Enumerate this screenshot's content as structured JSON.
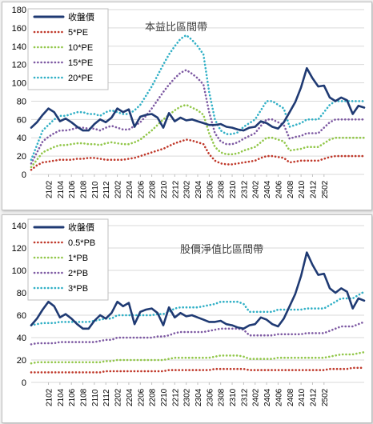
{
  "chart_data": [
    {
      "type": "line",
      "title": "本益比區間帶",
      "legend_position": "top-left",
      "ylim": [
        0,
        180
      ],
      "yticks": [
        0,
        20,
        40,
        60,
        80,
        100,
        120,
        140,
        160,
        180
      ],
      "grid": true,
      "x_tick_labels": [
        "2102",
        "2104",
        "2106",
        "2108",
        "2110",
        "2112",
        "2202",
        "2204",
        "2206",
        "2208",
        "2210",
        "2212",
        "2302",
        "2304",
        "2306",
        "2308",
        "2310",
        "2312",
        "2402",
        "2404",
        "2406",
        "2408",
        "2410",
        "2412",
        "2502"
      ],
      "series": [
        {
          "name": "收盤價",
          "color": "#1f3a73",
          "style": "solid",
          "values": [
            51,
            57,
            65,
            72,
            68,
            58,
            61,
            57,
            52,
            48,
            48,
            55,
            60,
            57,
            62,
            72,
            68,
            71,
            52,
            63,
            65,
            66,
            62,
            51,
            67,
            58,
            62,
            59,
            60,
            58,
            56,
            54,
            54,
            55,
            52,
            51,
            49,
            48,
            51,
            52,
            58,
            56,
            52,
            50,
            57,
            68,
            79,
            95,
            116,
            105,
            96,
            97,
            84,
            80,
            84,
            81,
            66,
            75,
            73
          ]
        },
        {
          "name": "5*PE",
          "color": "#c0392b",
          "style": "dotted",
          "values": [
            5,
            10,
            13,
            14,
            15,
            16,
            16,
            16,
            17,
            17,
            18,
            18,
            17,
            16,
            16,
            16,
            16,
            17,
            18,
            20,
            22,
            24,
            26,
            28,
            31,
            34,
            36,
            38,
            37,
            35,
            33,
            22,
            15,
            12,
            11,
            11,
            12,
            13,
            14,
            15,
            18,
            20,
            20,
            19,
            18,
            13,
            14,
            15,
            15,
            15,
            15,
            17,
            19,
            20,
            20,
            20,
            20,
            20,
            20
          ]
        },
        {
          "name": "10*PE",
          "color": "#92c74a",
          "style": "dotted",
          "values": [
            8,
            16,
            24,
            27,
            30,
            32,
            32,
            33,
            34,
            34,
            33,
            33,
            32,
            34,
            35,
            34,
            33,
            33,
            35,
            38,
            43,
            48,
            54,
            60,
            65,
            70,
            74,
            76,
            73,
            70,
            65,
            45,
            30,
            24,
            22,
            22,
            23,
            26,
            28,
            30,
            35,
            40,
            40,
            38,
            36,
            26,
            27,
            28,
            30,
            30,
            30,
            34,
            38,
            40,
            40,
            40,
            40,
            40,
            40
          ]
        },
        {
          "name": "15*PE",
          "color": "#7e5aa3",
          "style": "dotted",
          "values": [
            12,
            24,
            36,
            41,
            45,
            48,
            48,
            49,
            51,
            51,
            50,
            50,
            48,
            51,
            53,
            51,
            49,
            49,
            53,
            57,
            64,
            72,
            81,
            90,
            98,
            105,
            111,
            114,
            110,
            105,
            98,
            68,
            45,
            36,
            33,
            33,
            35,
            39,
            42,
            45,
            53,
            60,
            60,
            57,
            54,
            39,
            41,
            42,
            45,
            45,
            45,
            51,
            57,
            60,
            60,
            60,
            60,
            60,
            60
          ]
        },
        {
          "name": "20*PE",
          "color": "#31b0c6",
          "style": "dotted",
          "values": [
            16,
            32,
            48,
            54,
            60,
            64,
            64,
            66,
            68,
            68,
            66,
            66,
            64,
            68,
            70,
            68,
            66,
            66,
            70,
            76,
            86,
            96,
            108,
            120,
            131,
            140,
            148,
            152,
            147,
            140,
            131,
            90,
            60,
            48,
            44,
            44,
            46,
            52,
            56,
            60,
            70,
            80,
            80,
            76,
            72,
            52,
            54,
            56,
            60,
            60,
            60,
            68,
            76,
            80,
            80,
            80,
            80,
            80,
            80
          ]
        }
      ]
    },
    {
      "type": "line",
      "title": "股價淨值比區間帶",
      "legend_position": "top-left",
      "ylim": [
        0,
        140
      ],
      "yticks": [
        0,
        20,
        40,
        60,
        80,
        100,
        120,
        140
      ],
      "grid": true,
      "x_tick_labels": [
        "2102",
        "2104",
        "2106",
        "2108",
        "2110",
        "2112",
        "2202",
        "2204",
        "2206",
        "2208",
        "2210",
        "2212",
        "2302",
        "2304",
        "2306",
        "2308",
        "2310",
        "2312",
        "2402",
        "2404",
        "2406",
        "2408",
        "2410",
        "2412",
        "2502"
      ],
      "series": [
        {
          "name": "收盤價",
          "color": "#1f3a73",
          "style": "solid",
          "values": [
            51,
            57,
            65,
            72,
            68,
            58,
            61,
            57,
            52,
            48,
            48,
            55,
            60,
            57,
            62,
            72,
            68,
            71,
            52,
            63,
            65,
            66,
            62,
            51,
            67,
            58,
            62,
            59,
            60,
            58,
            56,
            54,
            54,
            55,
            52,
            51,
            49,
            48,
            51,
            52,
            58,
            56,
            52,
            50,
            57,
            68,
            79,
            95,
            116,
            105,
            96,
            97,
            84,
            80,
            84,
            81,
            66,
            75,
            73
          ]
        },
        {
          "name": "0.5*PB",
          "color": "#c0392b",
          "style": "dotted",
          "values": [
            9,
            9,
            9,
            9,
            9,
            9,
            9,
            9,
            9,
            9,
            9,
            9,
            9,
            10,
            10,
            10,
            10,
            10,
            10,
            10,
            10,
            10,
            10,
            10,
            11,
            11,
            11,
            11,
            11,
            11,
            11,
            11,
            12,
            12,
            12,
            12,
            12,
            12,
            11,
            11,
            11,
            11,
            11,
            11,
            11,
            11,
            11,
            11,
            11,
            11,
            11,
            11,
            12,
            12,
            12,
            12,
            13,
            13,
            13
          ]
        },
        {
          "name": "1*PB",
          "color": "#92c74a",
          "style": "dotted",
          "values": [
            17,
            18,
            18,
            18,
            18,
            18,
            18,
            18,
            18,
            18,
            18,
            18,
            18,
            19,
            19,
            20,
            20,
            20,
            20,
            20,
            20,
            20,
            20,
            20,
            21,
            22,
            22,
            22,
            22,
            22,
            22,
            22,
            23,
            24,
            24,
            24,
            24,
            23,
            21,
            21,
            21,
            21,
            21,
            22,
            22,
            22,
            22,
            22,
            22,
            22,
            22,
            22,
            23,
            24,
            25,
            25,
            25,
            26,
            27
          ]
        },
        {
          "name": "2*PB",
          "color": "#7e5aa3",
          "style": "dotted",
          "values": [
            34,
            35,
            35,
            35,
            35,
            36,
            36,
            36,
            36,
            36,
            36,
            36,
            37,
            38,
            38,
            40,
            40,
            40,
            40,
            40,
            40,
            40,
            41,
            41,
            42,
            44,
            45,
            45,
            45,
            45,
            45,
            46,
            47,
            48,
            48,
            48,
            48,
            47,
            42,
            42,
            42,
            42,
            42,
            43,
            43,
            43,
            43,
            43,
            44,
            44,
            44,
            44,
            46,
            48,
            50,
            50,
            50,
            52,
            54
          ]
        },
        {
          "name": "3*PB",
          "color": "#31b0c6",
          "style": "dotted",
          "values": [
            51,
            52,
            53,
            53,
            53,
            54,
            54,
            54,
            54,
            54,
            54,
            55,
            56,
            57,
            57,
            60,
            60,
            60,
            60,
            60,
            60,
            60,
            61,
            61,
            63,
            66,
            67,
            67,
            67,
            67,
            68,
            69,
            70,
            72,
            72,
            72,
            72,
            70,
            63,
            63,
            63,
            63,
            63,
            65,
            65,
            65,
            65,
            65,
            66,
            66,
            66,
            66,
            69,
            72,
            75,
            75,
            75,
            78,
            81
          ]
        }
      ]
    }
  ]
}
